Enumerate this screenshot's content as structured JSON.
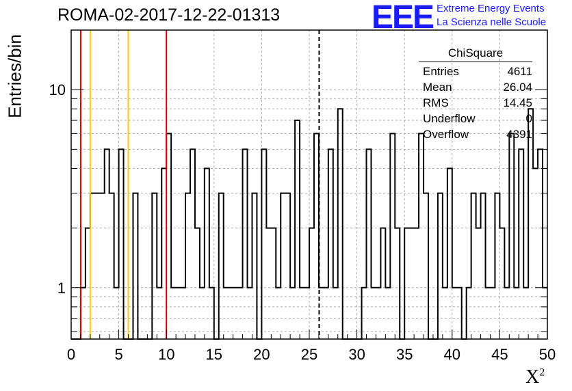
{
  "title": "ROMA-02-2017-12-22-01313",
  "logo": {
    "mark": "EEE",
    "line1": "Extreme Energy Events",
    "line2": "La Scienza nelle Scuole",
    "color": "#1a1aff"
  },
  "stats": {
    "title": "ChiSquare",
    "rows": [
      {
        "name": "Entries",
        "value": "4611"
      },
      {
        "name": "Mean",
        "value": "26.04"
      },
      {
        "name": "RMS",
        "value": "14.45"
      },
      {
        "name": "Underflow",
        "value": "0"
      },
      {
        "name": "Overflow",
        "value": "4391"
      }
    ]
  },
  "chart_data": {
    "type": "histogram",
    "ylabel": "Entries/bin",
    "xlabel": "X",
    "xlabel_sup": "2",
    "xlim": [
      0,
      50
    ],
    "ylim": [
      0.55,
      20
    ],
    "log_y": true,
    "grid": true,
    "bin_width": 0.5,
    "x_ticks": [
      0,
      5,
      10,
      15,
      20,
      25,
      30,
      35,
      40,
      45,
      50
    ],
    "y_tick_labels": [
      1,
      10
    ],
    "values": [
      0,
      0,
      1,
      2,
      3,
      3,
      3,
      5,
      3,
      1,
      5,
      0,
      0,
      3,
      0,
      0,
      0,
      3,
      1,
      4,
      6,
      1,
      1,
      1,
      3,
      5,
      2,
      1,
      4,
      1,
      0,
      3,
      1,
      1,
      1,
      1,
      5,
      1,
      3,
      0,
      5,
      2,
      2,
      1,
      3,
      3,
      1,
      7,
      1,
      1,
      2,
      6,
      1,
      1,
      5,
      1,
      8,
      0,
      0,
      0,
      0,
      1,
      5,
      1,
      1,
      2,
      1,
      6,
      2,
      0,
      2,
      2,
      2,
      6,
      3,
      0,
      0,
      3,
      1,
      4,
      1,
      1,
      0,
      1,
      3,
      2,
      3,
      1,
      1,
      3,
      2,
      1,
      6,
      1,
      5,
      1,
      8,
      4,
      5,
      1
    ],
    "lines": [
      {
        "x": 1,
        "color": "#e00000",
        "style": "solid"
      },
      {
        "x": 10,
        "color": "#e00000",
        "style": "solid"
      },
      {
        "x": 2,
        "color": "#ffcc00",
        "style": "solid"
      },
      {
        "x": 6,
        "color": "#ffcc00",
        "style": "solid"
      },
      {
        "x": 26.04,
        "color": "#000000",
        "style": "dashed"
      }
    ]
  }
}
